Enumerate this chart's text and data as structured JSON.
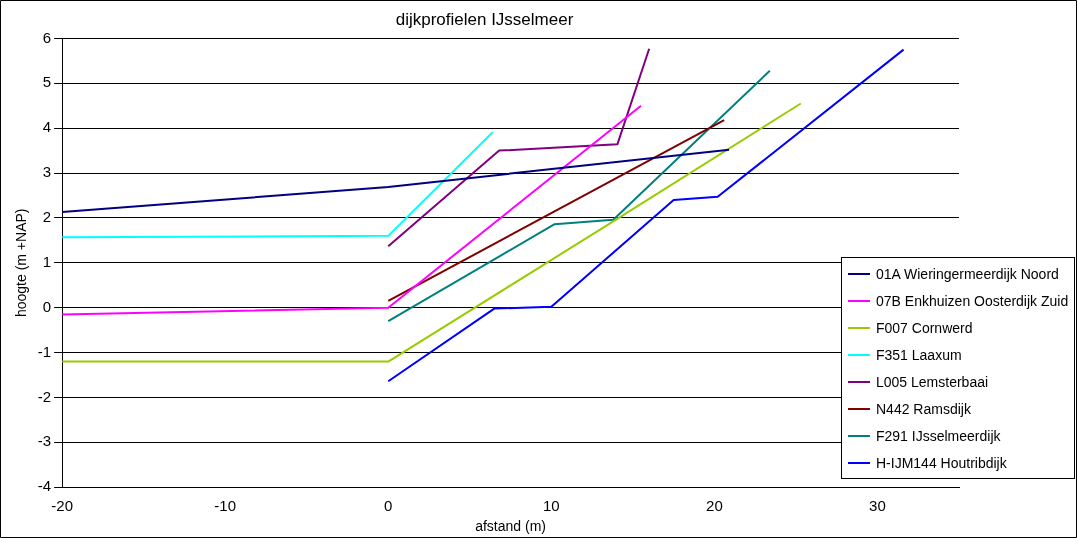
{
  "chart_data": {
    "type": "line",
    "title": "dijkprofielen IJsselmeer",
    "xlabel": "afstand (m)",
    "ylabel": "hoogte (m +NAP)",
    "xlim": [
      -20,
      35
    ],
    "xticks": [
      -20,
      -10,
      0,
      10,
      20,
      30
    ],
    "ylim": [
      -4,
      6
    ],
    "yticks": [
      -4,
      -3,
      -2,
      -1,
      0,
      1,
      2,
      3,
      4,
      5,
      6
    ],
    "grid": "y",
    "legend": "bottom right",
    "marker": "none",
    "line_style": "solid",
    "series": [
      {
        "name": "01A  Wieringermeerdijk Noord",
        "color": "#000080",
        "x": [
          -20,
          0,
          20.9
        ],
        "values": [
          2.13,
          2.69,
          3.52
        ]
      },
      {
        "name": "07B  Enkhuizen Oosterdijk Zuid",
        "color": "#ff00ff",
        "x": [
          -20,
          0,
          15.5
        ],
        "values": [
          -0.15,
          0,
          4.5
        ]
      },
      {
        "name": "F007  Cornwerd",
        "color": "#99cc00",
        "x": [
          -20,
          0,
          13.7,
          25.3
        ],
        "values": [
          -1.2,
          -1.2,
          1.9,
          4.55
        ]
      },
      {
        "name": "F351  Laaxum",
        "color": "#00ffff",
        "x": [
          -20,
          0,
          6.4
        ],
        "values": [
          1.57,
          1.6,
          3.91
        ]
      },
      {
        "name": "L005  Lemsterbaai",
        "color": "#800080",
        "x": [
          0,
          6.8,
          14.05,
          16
        ],
        "values": [
          1.37,
          3.5,
          3.64,
          5.77
        ]
      },
      {
        "name": "N442  Ramsdijk",
        "color": "#800000",
        "x": [
          0,
          20.6
        ],
        "values": [
          0.15,
          4.18
        ]
      },
      {
        "name": "F291  IJsselmeerdijk",
        "color": "#008080",
        "x": [
          0,
          10.2,
          13.8,
          23.4
        ],
        "values": [
          -0.3,
          1.86,
          1.96,
          5.28
        ]
      },
      {
        "name": "H-IJM144  Houtribdijk",
        "color": "#0000ff",
        "x": [
          0,
          6.5,
          10,
          17.5,
          20.2,
          31.6
        ],
        "values": [
          -1.64,
          -0.02,
          0.02,
          2.4,
          2.47,
          5.75
        ]
      }
    ]
  }
}
